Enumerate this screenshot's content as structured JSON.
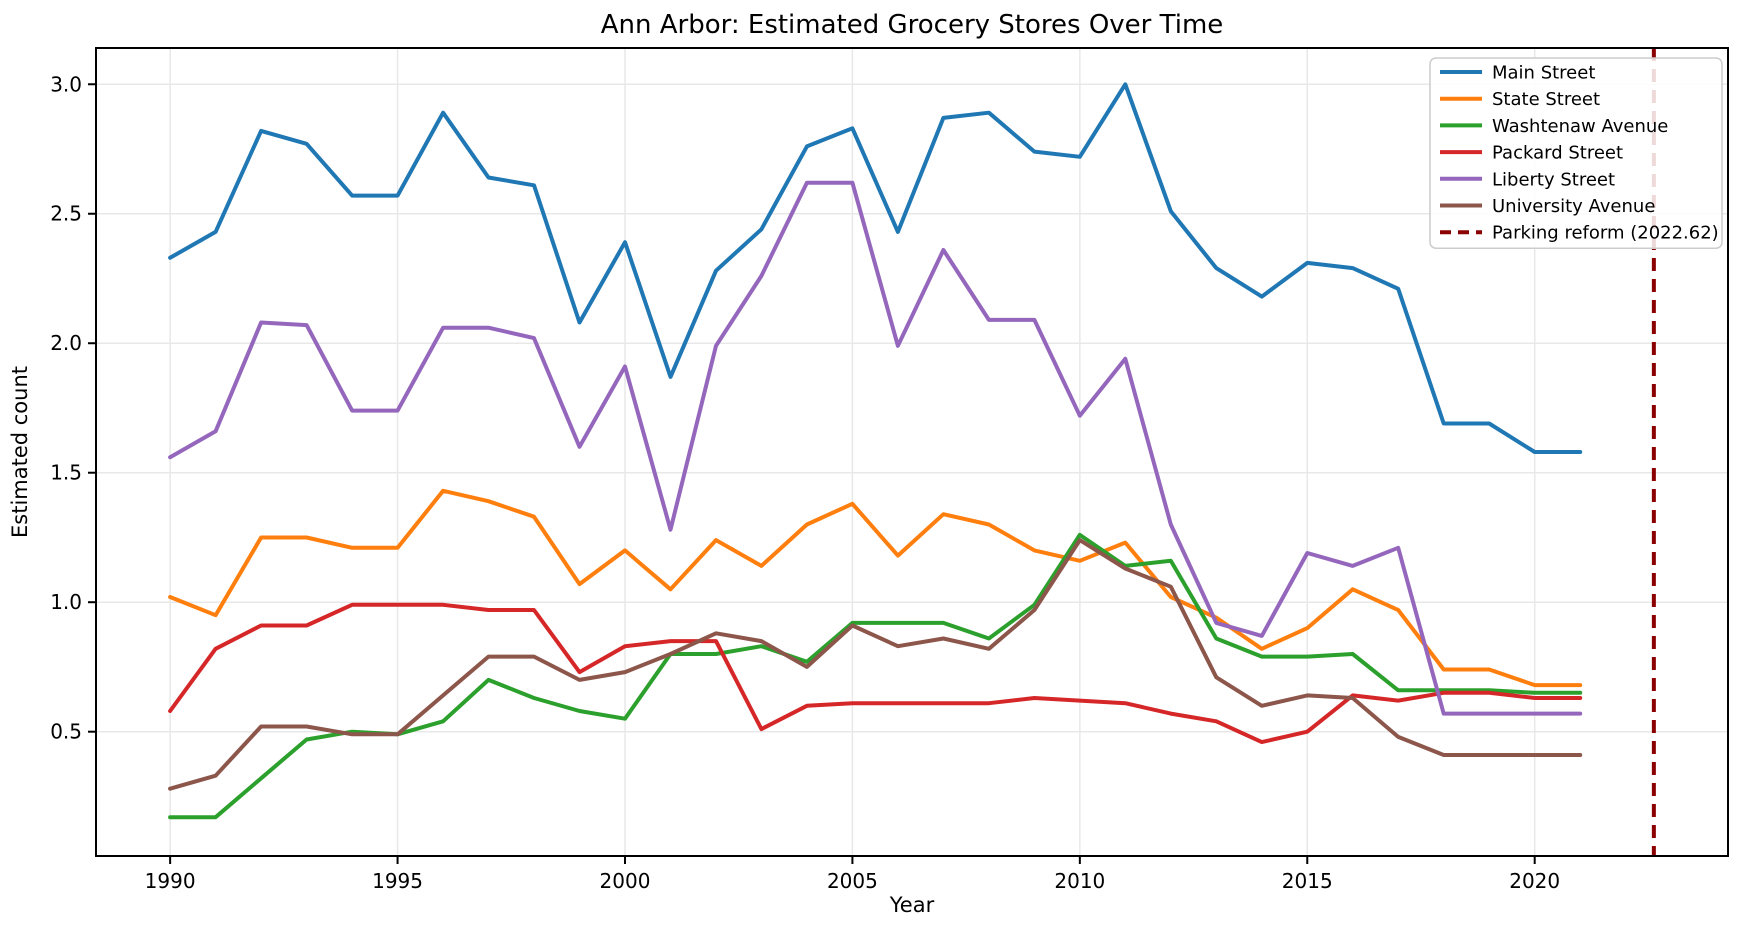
{
  "chart_data": {
    "type": "line",
    "title": "Ann Arbor: Estimated Grocery Stores Over Time",
    "xlabel": "Year",
    "ylabel": "Estimated count",
    "grid": true,
    "legend_position": "upper right",
    "xlim": [
      1988.37,
      2024.25
    ],
    "ylim": [
      0.02,
      3.14
    ],
    "xticks": [
      1990,
      1995,
      2000,
      2005,
      2010,
      2015,
      2020
    ],
    "yticks": [
      0.5,
      1.0,
      1.5,
      2.0,
      2.5,
      3.0
    ],
    "x": [
      1990,
      1991,
      1992,
      1993,
      1994,
      1995,
      1996,
      1997,
      1998,
      1999,
      2000,
      2001,
      2002,
      2003,
      2004,
      2005,
      2006,
      2007,
      2008,
      2009,
      2010,
      2011,
      2012,
      2013,
      2014,
      2015,
      2016,
      2017,
      2018,
      2019,
      2020,
      2021
    ],
    "series": [
      {
        "name": "Main Street",
        "color": "#1f77b4",
        "values": [
          2.33,
          2.43,
          2.82,
          2.77,
          2.57,
          2.57,
          2.89,
          2.64,
          2.61,
          2.08,
          2.39,
          1.87,
          2.28,
          2.44,
          2.76,
          2.83,
          2.43,
          2.87,
          2.89,
          2.74,
          2.72,
          3.0,
          2.51,
          2.29,
          2.18,
          2.31,
          2.29,
          2.21,
          1.69,
          1.69,
          1.58,
          1.58
        ]
      },
      {
        "name": "State Street",
        "color": "#ff7f0e",
        "values": [
          1.02,
          0.95,
          1.25,
          1.25,
          1.21,
          1.21,
          1.43,
          1.39,
          1.33,
          1.07,
          1.2,
          1.05,
          1.24,
          1.14,
          1.3,
          1.38,
          1.18,
          1.34,
          1.3,
          1.2,
          1.16,
          1.23,
          1.02,
          0.94,
          0.82,
          0.9,
          1.05,
          0.97,
          0.74,
          0.74,
          0.68,
          0.68
        ]
      },
      {
        "name": "Washtenaw Avenue",
        "color": "#2ca02c",
        "values": [
          0.17,
          0.17,
          0.32,
          0.47,
          0.5,
          0.49,
          0.54,
          0.7,
          0.63,
          0.58,
          0.55,
          0.8,
          0.8,
          0.83,
          0.77,
          0.92,
          0.92,
          0.92,
          0.86,
          0.99,
          1.26,
          1.14,
          1.16,
          0.86,
          0.79,
          0.79,
          0.8,
          0.66,
          0.66,
          0.66,
          0.65,
          0.65
        ]
      },
      {
        "name": "Packard Street",
        "color": "#d62728",
        "values": [
          0.58,
          0.82,
          0.91,
          0.91,
          0.99,
          0.99,
          0.99,
          0.97,
          0.97,
          0.73,
          0.83,
          0.85,
          0.85,
          0.51,
          0.6,
          0.61,
          0.61,
          0.61,
          0.61,
          0.63,
          0.62,
          0.61,
          0.57,
          0.54,
          0.46,
          0.5,
          0.64,
          0.62,
          0.65,
          0.65,
          0.63,
          0.63
        ]
      },
      {
        "name": "Liberty Street",
        "color": "#9467bd",
        "values": [
          1.56,
          1.66,
          2.08,
          2.07,
          1.74,
          1.74,
          2.06,
          2.06,
          2.02,
          1.6,
          1.91,
          1.28,
          1.99,
          2.26,
          2.62,
          2.62,
          1.99,
          2.36,
          2.09,
          2.09,
          1.72,
          1.94,
          1.3,
          0.92,
          0.87,
          1.19,
          1.14,
          1.21,
          0.57,
          0.57,
          0.57,
          0.57
        ]
      },
      {
        "name": "University Avenue",
        "color": "#8c564b",
        "values": [
          0.28,
          0.33,
          0.52,
          0.52,
          0.49,
          0.49,
          0.64,
          0.79,
          0.79,
          0.7,
          0.73,
          0.8,
          0.88,
          0.85,
          0.75,
          0.91,
          0.83,
          0.86,
          0.82,
          0.97,
          1.24,
          1.13,
          1.06,
          0.71,
          0.6,
          0.64,
          0.63,
          0.48,
          0.41,
          0.41,
          0.41,
          0.41
        ]
      }
    ],
    "vline": {
      "x": 2022.62,
      "label": "Parking reform (2022.62)",
      "color": "#8b0000",
      "style": "dashed"
    },
    "colors": {
      "grid": "#e8e8e8",
      "spine": "#000000",
      "legend_border": "#cccccc",
      "legend_background": "#ffffff"
    }
  }
}
